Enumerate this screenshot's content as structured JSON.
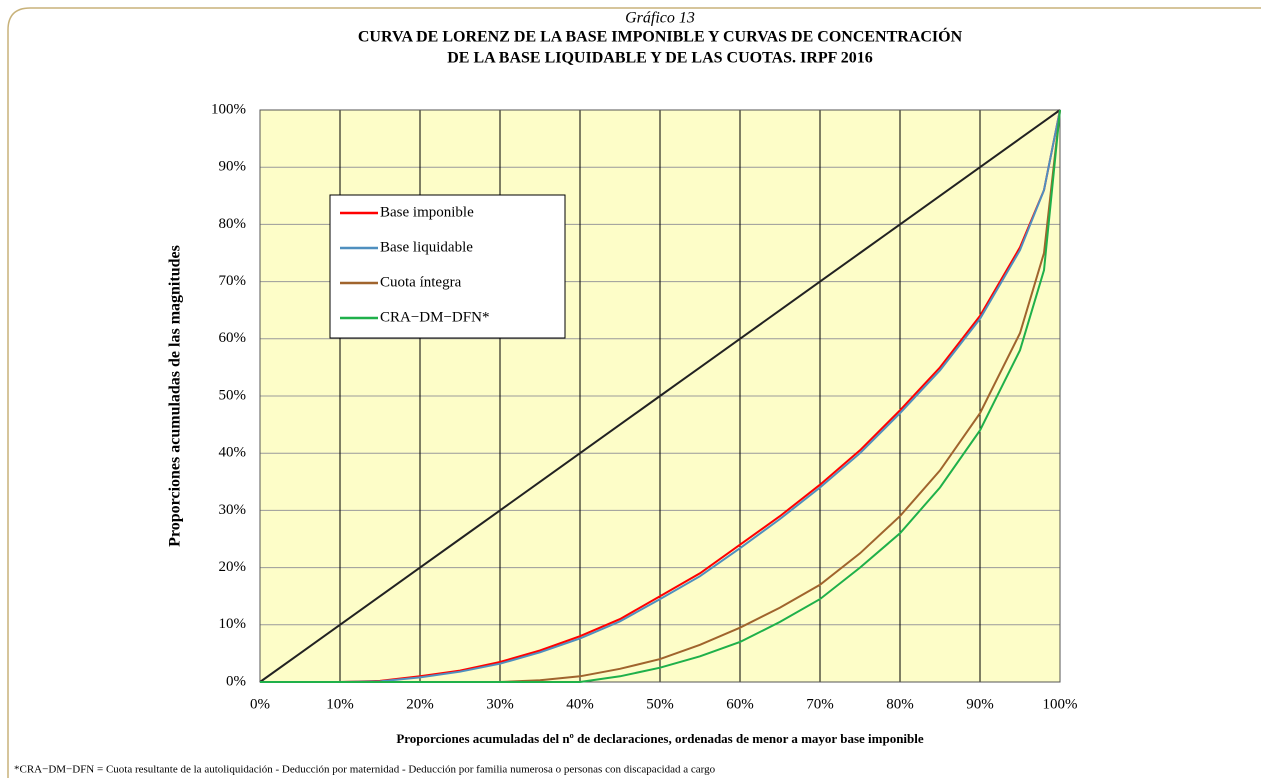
{
  "chart_data": {
    "type": "line",
    "label": "Gráfico 13",
    "title": [
      "CURVA DE LORENZ DE LA BASE IMPONIBLE Y CURVAS DE CONCENTRACIÓN",
      "DE LA BASE LIQUIDABLE  Y DE LAS CUOTAS.   IRPF 2016"
    ],
    "x_label": "Proporciones  acumuladas  del nº de declaraciones, ordenadas  de menor a mayor base imponible",
    "y_label": "Proporciones acumuladas de las magnitudes",
    "footnote": "*CRA−DM−DFN = Cuota resultante de la autoliquidación  - Deducción  por maternidad  - Deducción  por familia  numerosa o personas con discapacidad a cargo",
    "x": [
      0,
      5,
      10,
      15,
      20,
      25,
      30,
      35,
      40,
      45,
      50,
      55,
      60,
      65,
      70,
      75,
      80,
      85,
      90,
      95,
      98,
      100
    ],
    "series": [
      {
        "color": "#222222",
        "values": [
          0,
          5,
          10,
          15,
          20,
          25,
          30,
          35,
          40,
          45,
          50,
          55,
          60,
          65,
          70,
          75,
          80,
          85,
          90,
          95,
          98,
          100
        ]
      },
      {
        "name": "Base imponible",
        "color": "#ff0000",
        "values": [
          0,
          0,
          0,
          0.2,
          1,
          2,
          3.5,
          5.5,
          8,
          11,
          15,
          19,
          24,
          29,
          34.5,
          40.5,
          47.5,
          55,
          64,
          76,
          86,
          100
        ]
      },
      {
        "name": "Base liquidable",
        "color": "#4f8fbf",
        "values": [
          0,
          0,
          0,
          0.1,
          0.8,
          1.8,
          3.2,
          5.2,
          7.6,
          10.6,
          14.5,
          18.5,
          23.4,
          28.5,
          34,
          40,
          47,
          54.5,
          63.5,
          75.5,
          86,
          100
        ]
      },
      {
        "name": "Cuota íntegra",
        "color": "#a0642d",
        "values": [
          0,
          0,
          0,
          0,
          0,
          0,
          0,
          0.3,
          1,
          2.3,
          4,
          6.5,
          9.5,
          13,
          17,
          22.5,
          29,
          37,
          47,
          61,
          75,
          100
        ]
      },
      {
        "name": "CRA−DM−DFN*",
        "color": "#1fb04a",
        "values": [
          0,
          0,
          0,
          0,
          0,
          0,
          0,
          0,
          0,
          1,
          2.5,
          4.5,
          7,
          10.5,
          14.5,
          20,
          26,
          34,
          44,
          58,
          72,
          100
        ]
      }
    ],
    "xlim": [
      0,
      100
    ],
    "ylim": [
      0,
      100
    ],
    "xticks": [
      {
        "value": 0,
        "label": "0%"
      },
      {
        "value": 10,
        "label": "10%"
      },
      {
        "value": 20,
        "label": "20%"
      },
      {
        "value": 30,
        "label": "30%"
      },
      {
        "value": 40,
        "label": "40%"
      },
      {
        "value": 50,
        "label": "50%"
      },
      {
        "value": 60,
        "label": "60%"
      },
      {
        "value": 70,
        "label": "70%"
      },
      {
        "value": 80,
        "label": "80%"
      },
      {
        "value": 90,
        "label": "90%"
      },
      {
        "value": 100,
        "label": "100%"
      }
    ],
    "yticks": [
      {
        "value": 0,
        "label": "0%"
      },
      {
        "value": 10,
        "label": "10%"
      },
      {
        "value": 20,
        "label": "20%"
      },
      {
        "value": 30,
        "label": "30%"
      },
      {
        "value": 40,
        "label": "40%"
      },
      {
        "value": 50,
        "label": "50%"
      },
      {
        "value": 60,
        "label": "60%"
      },
      {
        "value": 70,
        "label": "70%"
      },
      {
        "value": 80,
        "label": "80%"
      },
      {
        "value": 90,
        "label": "90%"
      },
      {
        "value": 100,
        "label": "100%"
      }
    ],
    "grid": true
  }
}
